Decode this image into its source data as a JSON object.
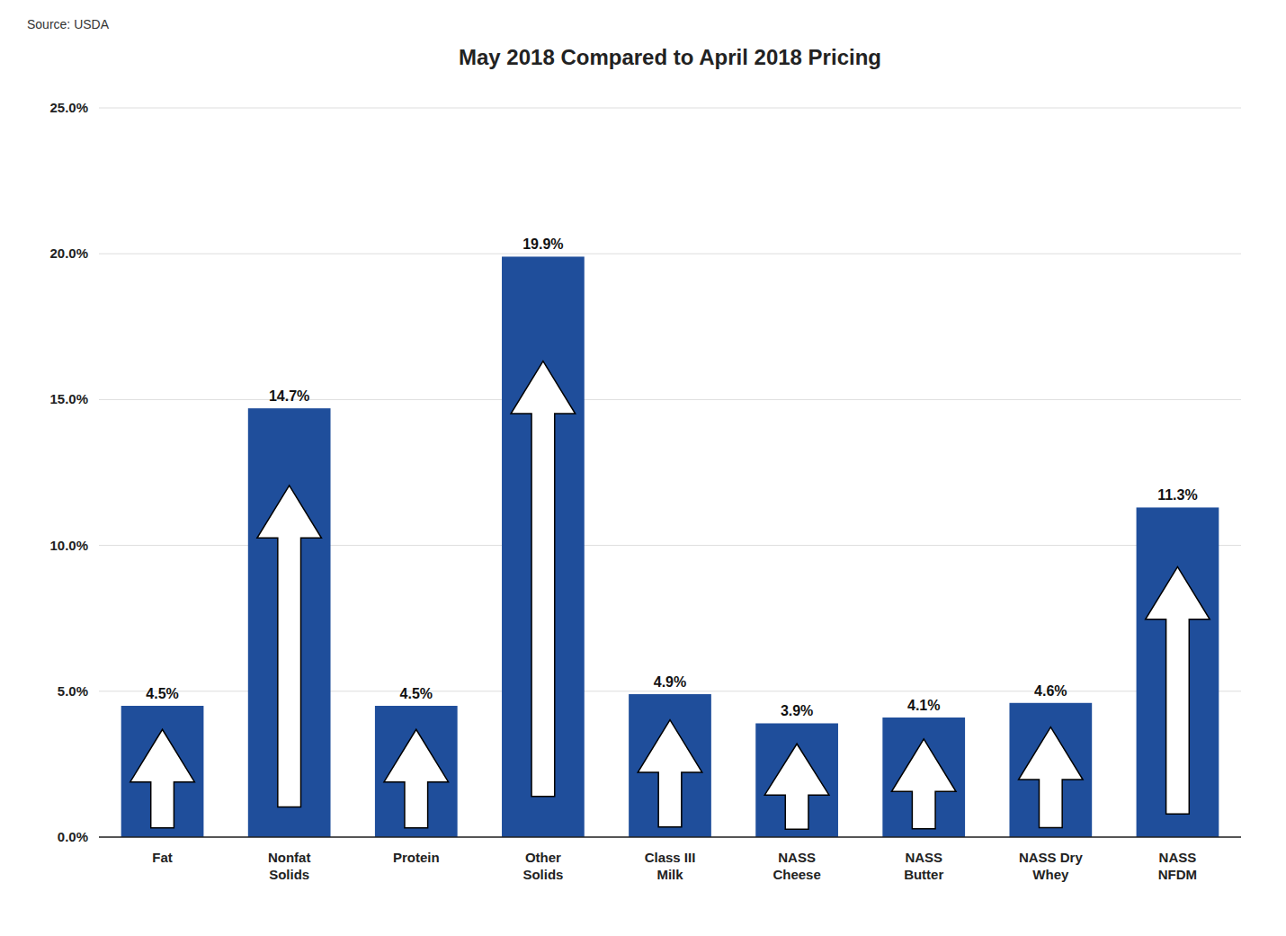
{
  "chart_data": {
    "type": "bar",
    "title": "May 2018 Compared to April 2018 Pricing",
    "annotations": [
      "Source: USDA"
    ],
    "categories": [
      "Fat",
      "Nonfat\nSolids",
      "Protein",
      "Other\nSolids",
      "Class III\nMilk",
      "NASS\nCheese",
      "NASS\nButter",
      "NASS Dry\nWhey",
      "NASS\nNFDM"
    ],
    "values": [
      4.5,
      14.7,
      4.5,
      19.9,
      4.9,
      3.9,
      4.1,
      4.6,
      11.3
    ],
    "value_labels": [
      "4.5%",
      "14.7%",
      "4.5%",
      "19.9%",
      "4.9%",
      "3.9%",
      "4.1%",
      "4.6%",
      "11.3%"
    ],
    "data_labels": true,
    "color": "#1F4E9B",
    "ylim": [
      0,
      25
    ],
    "yticks": [
      {
        "value": 0,
        "label": "0.0%"
      },
      {
        "value": 5,
        "label": "5.0%"
      },
      {
        "value": 10,
        "label": "10.0%"
      },
      {
        "value": 15,
        "label": "15.0%"
      },
      {
        "value": 20,
        "label": "20.0%"
      },
      {
        "value": 25,
        "label": "25.0%"
      }
    ],
    "grid": true
  }
}
